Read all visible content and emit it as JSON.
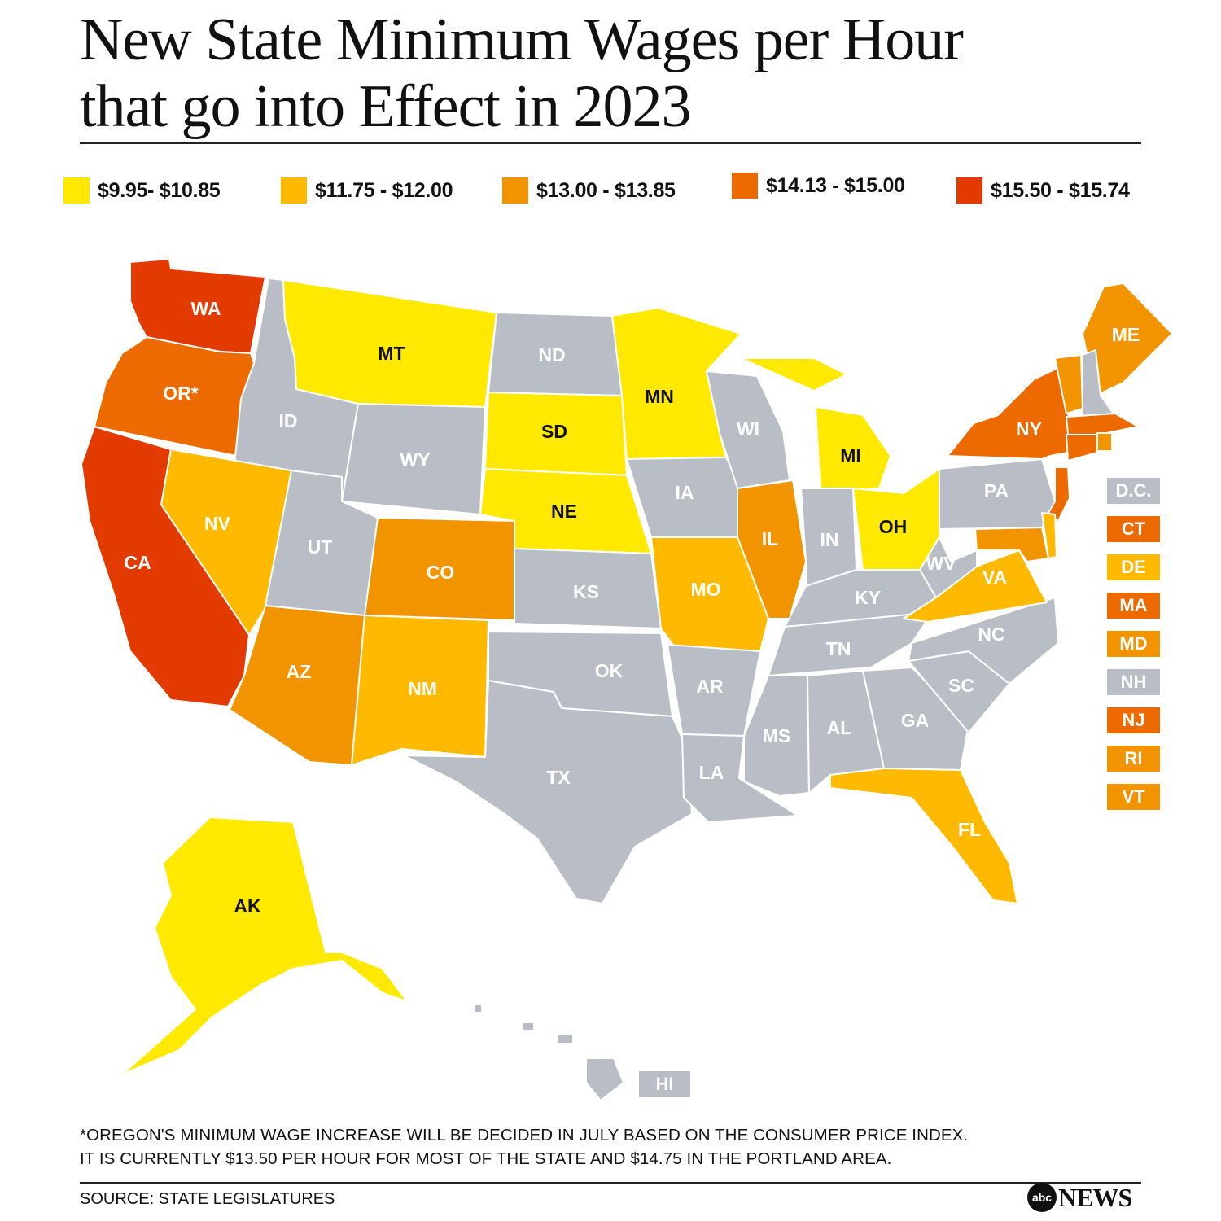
{
  "title": {
    "line1": "New State Minimum Wages per Hour",
    "line2": "that go into Effect in 2023"
  },
  "legend": [
    {
      "label": "$9.95- $10.85",
      "color": "#ffe900"
    },
    {
      "label": "$11.75 - $12.00",
      "color": "#ffba00"
    },
    {
      "label": "$13.00 - $13.85",
      "color": "#f29400"
    },
    {
      "label": "$14.13 - $15.00",
      "color": "#ec6a00"
    },
    {
      "label": "$15.50 - $15.74",
      "color": "#e23a00"
    }
  ],
  "no_change_color": "#b9bec6",
  "states": {
    "WA": {
      "label": "WA",
      "tier": 4
    },
    "OR": {
      "label": "OR*",
      "tier": 3
    },
    "CA": {
      "label": "CA",
      "tier": 4
    },
    "ID": {
      "label": "ID",
      "tier": null
    },
    "NV": {
      "label": "NV",
      "tier": 1
    },
    "MT": {
      "label": "MT",
      "tier": 0
    },
    "WY": {
      "label": "WY",
      "tier": null
    },
    "UT": {
      "label": "UT",
      "tier": null
    },
    "CO": {
      "label": "CO",
      "tier": 2
    },
    "AZ": {
      "label": "AZ",
      "tier": 2
    },
    "NM": {
      "label": "NM",
      "tier": 1
    },
    "ND": {
      "label": "ND",
      "tier": null
    },
    "SD": {
      "label": "SD",
      "tier": 0
    },
    "NE": {
      "label": "NE",
      "tier": 0
    },
    "KS": {
      "label": "KS",
      "tier": null
    },
    "OK": {
      "label": "OK",
      "tier": null
    },
    "TX": {
      "label": "TX",
      "tier": null
    },
    "MN": {
      "label": "MN",
      "tier": 0
    },
    "IA": {
      "label": "IA",
      "tier": null
    },
    "MO": {
      "label": "MO",
      "tier": 1
    },
    "AR": {
      "label": "AR",
      "tier": null
    },
    "LA": {
      "label": "LA",
      "tier": null
    },
    "WI": {
      "label": "WI",
      "tier": null
    },
    "IL": {
      "label": "IL",
      "tier": 2
    },
    "MI": {
      "label": "MI",
      "tier": 0
    },
    "IN": {
      "label": "IN",
      "tier": null
    },
    "OH": {
      "label": "OH",
      "tier": 0
    },
    "KY": {
      "label": "KY",
      "tier": null
    },
    "TN": {
      "label": "TN",
      "tier": null
    },
    "MS": {
      "label": "MS",
      "tier": null
    },
    "AL": {
      "label": "AL",
      "tier": null
    },
    "GA": {
      "label": "GA",
      "tier": null
    },
    "FL": {
      "label": "FL",
      "tier": 1
    },
    "SC": {
      "label": "SC",
      "tier": null
    },
    "NC": {
      "label": "NC",
      "tier": null
    },
    "VA": {
      "label": "VA",
      "tier": 1
    },
    "WV": {
      "label": "WV",
      "tier": null
    },
    "PA": {
      "label": "PA",
      "tier": null
    },
    "NY": {
      "label": "NY",
      "tier": 3
    },
    "NJ": {
      "label": "NJ",
      "tier": 3
    },
    "ME": {
      "label": "ME",
      "tier": 2
    },
    "VT": {
      "label": "VT",
      "tier": 2
    },
    "NH": {
      "label": "NH",
      "tier": null
    },
    "MA": {
      "label": "MA",
      "tier": 3
    },
    "RI": {
      "label": "RI",
      "tier": 2
    },
    "CT": {
      "label": "CT",
      "tier": 3
    },
    "MD": {
      "label": "MD",
      "tier": 2
    },
    "DE": {
      "label": "DE",
      "tier": 1
    },
    "AK": {
      "label": "AK",
      "tier": 0
    },
    "HI": {
      "label": "HI",
      "tier": null
    }
  },
  "side_labels": [
    {
      "label": "D.C.",
      "tier": null
    },
    {
      "label": "CT",
      "tier": 3
    },
    {
      "label": "DE",
      "tier": 1
    },
    {
      "label": "MA",
      "tier": 3
    },
    {
      "label": "MD",
      "tier": 2
    },
    {
      "label": "NH",
      "tier": null
    },
    {
      "label": "NJ",
      "tier": 3
    },
    {
      "label": "RI",
      "tier": 2
    },
    {
      "label": "VT",
      "tier": 2
    }
  ],
  "hi_label": "HI",
  "footnote": {
    "line1": "*OREGON'S MINIMUM WAGE INCREASE WILL BE DECIDED IN JULY BASED ON THE CONSUMER PRICE INDEX.",
    "line2": "IT IS CURRENTLY $13.50 PER HOUR FOR MOST OF THE STATE AND $14.75 IN THE PORTLAND AREA."
  },
  "source": "SOURCE: STATE LEGISLATURES",
  "logo": {
    "mark": "abc",
    "text": "NEWS"
  }
}
